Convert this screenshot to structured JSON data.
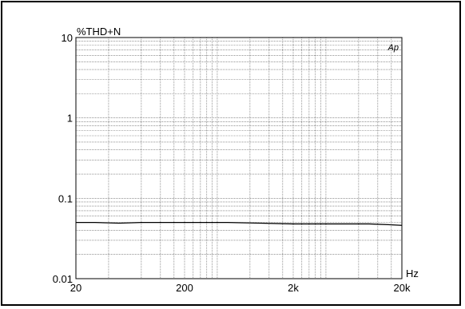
{
  "chart_data": {
    "type": "line",
    "title": "",
    "ylabel": "%THD+N",
    "xlabel": "Hz",
    "watermark": "Ap",
    "xscale": "log",
    "yscale": "log",
    "xlim": [
      20,
      20000
    ],
    "ylim": [
      0.01,
      10
    ],
    "grid": true,
    "x_ticks": [
      {
        "value": 20,
        "label": "20"
      },
      {
        "value": 200,
        "label": "200"
      },
      {
        "value": 2000,
        "label": "2k"
      },
      {
        "value": 20000,
        "label": "20k"
      }
    ],
    "y_ticks": [
      {
        "value": 10,
        "label": "10"
      },
      {
        "value": 1,
        "label": "1"
      },
      {
        "value": 0.1,
        "label": "0.1"
      },
      {
        "value": 0.01,
        "label": "0.01"
      }
    ],
    "series": [
      {
        "color": "#000000",
        "x": [
          20,
          30,
          50,
          80,
          100,
          200,
          500,
          1000,
          2000,
          5000,
          10000,
          15000,
          20000
        ],
        "y": [
          0.05,
          0.05,
          0.049,
          0.05,
          0.05,
          0.05,
          0.05,
          0.049,
          0.048,
          0.048,
          0.048,
          0.047,
          0.046
        ]
      }
    ]
  }
}
